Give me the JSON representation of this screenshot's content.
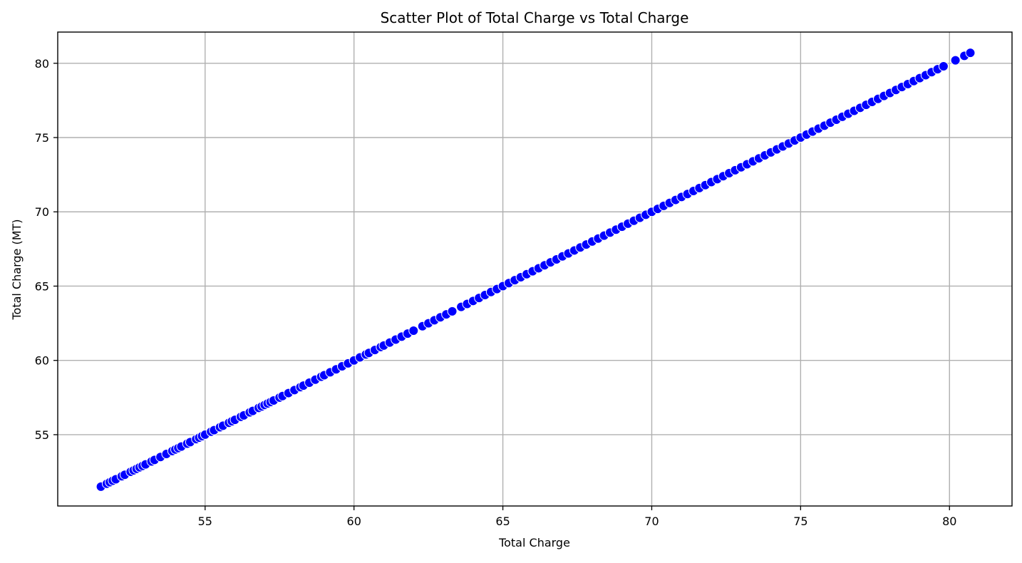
{
  "chart_data": {
    "type": "scatter",
    "title": "Scatter Plot of Total Charge vs Total Charge",
    "xlabel": "Total Charge",
    "ylabel": "Total Charge (MT)",
    "xlim": [
      50.05,
      82.1
    ],
    "ylim": [
      50.2,
      82.1
    ],
    "xticks": [
      55,
      60,
      65,
      70,
      75,
      80
    ],
    "yticks": [
      55,
      60,
      65,
      70,
      75,
      80
    ],
    "xtick_labels": [
      "55",
      "60",
      "65",
      "70",
      "75",
      "80"
    ],
    "ytick_labels": [
      "55",
      "60",
      "65",
      "70",
      "75",
      "80"
    ],
    "grid": true,
    "legend": "none",
    "marker_color": "#0000ff",
    "marker_edge_color": "#ffffff",
    "series": [
      {
        "x": [
          51.5,
          51.7,
          51.8,
          51.9,
          52.0,
          52.2,
          52.3,
          52.5,
          52.6,
          52.7,
          52.8,
          52.9,
          53.0,
          53.2,
          53.3,
          53.5,
          53.7,
          53.9,
          54.0,
          54.1,
          54.2,
          54.4,
          54.5,
          54.7,
          54.8,
          54.9,
          55.0,
          55.2,
          55.3,
          55.5,
          55.6,
          55.8,
          55.9,
          56.0,
          56.2,
          56.3,
          56.5,
          56.6,
          56.8,
          56.9,
          57.0,
          57.1,
          57.2,
          57.3,
          57.5,
          57.6,
          57.8,
          58.0,
          58.2,
          58.3,
          58.5,
          58.7,
          58.9,
          59.0,
          59.2,
          59.4,
          59.6,
          59.8,
          60.0,
          60.2,
          60.4,
          60.5,
          60.7,
          60.9,
          61.0,
          61.2,
          61.4,
          61.6,
          61.8,
          62.0,
          62.3,
          62.5,
          62.7,
          62.9,
          63.1,
          63.3,
          63.6,
          63.8,
          64.0,
          64.2,
          64.4,
          64.6,
          64.8,
          65.0,
          65.2,
          65.4,
          65.6,
          65.8,
          66.0,
          66.2,
          66.4,
          66.6,
          66.8,
          67.0,
          67.2,
          67.4,
          67.6,
          67.8,
          68.0,
          68.2,
          68.4,
          68.6,
          68.8,
          69.0,
          69.2,
          69.4,
          69.6,
          69.8,
          70.0,
          70.2,
          70.4,
          70.6,
          70.8,
          71.0,
          71.2,
          71.4,
          71.6,
          71.8,
          72.0,
          72.2,
          72.4,
          72.6,
          72.8,
          73.0,
          73.2,
          73.4,
          73.6,
          73.8,
          74.0,
          74.2,
          74.4,
          74.6,
          74.8,
          75.0,
          75.2,
          75.4,
          75.6,
          75.8,
          76.0,
          76.2,
          76.4,
          76.6,
          76.8,
          77.0,
          77.2,
          77.4,
          77.6,
          77.8,
          78.0,
          78.2,
          78.4,
          78.6,
          78.8,
          79.0,
          79.2,
          79.4,
          79.6,
          79.8,
          80.2,
          80.5,
          80.7
        ],
        "y": [
          51.5,
          51.7,
          51.8,
          51.9,
          52.0,
          52.2,
          52.3,
          52.5,
          52.6,
          52.7,
          52.8,
          52.9,
          53.0,
          53.2,
          53.3,
          53.5,
          53.7,
          53.9,
          54.0,
          54.1,
          54.2,
          54.4,
          54.5,
          54.7,
          54.8,
          54.9,
          55.0,
          55.2,
          55.3,
          55.5,
          55.6,
          55.8,
          55.9,
          56.0,
          56.2,
          56.3,
          56.5,
          56.6,
          56.8,
          56.9,
          57.0,
          57.1,
          57.2,
          57.3,
          57.5,
          57.6,
          57.8,
          58.0,
          58.2,
          58.3,
          58.5,
          58.7,
          58.9,
          59.0,
          59.2,
          59.4,
          59.6,
          59.8,
          60.0,
          60.2,
          60.4,
          60.5,
          60.7,
          60.9,
          61.0,
          61.2,
          61.4,
          61.6,
          61.8,
          62.0,
          62.3,
          62.5,
          62.7,
          62.9,
          63.1,
          63.3,
          63.6,
          63.8,
          64.0,
          64.2,
          64.4,
          64.6,
          64.8,
          65.0,
          65.2,
          65.4,
          65.6,
          65.8,
          66.0,
          66.2,
          66.4,
          66.6,
          66.8,
          67.0,
          67.2,
          67.4,
          67.6,
          67.8,
          68.0,
          68.2,
          68.4,
          68.6,
          68.8,
          69.0,
          69.2,
          69.4,
          69.6,
          69.8,
          70.0,
          70.2,
          70.4,
          70.6,
          70.8,
          71.0,
          71.2,
          71.4,
          71.6,
          71.8,
          72.0,
          72.2,
          72.4,
          72.6,
          72.8,
          73.0,
          73.2,
          73.4,
          73.6,
          73.8,
          74.0,
          74.2,
          74.4,
          74.6,
          74.8,
          75.0,
          75.2,
          75.4,
          75.6,
          75.8,
          76.0,
          76.2,
          76.4,
          76.6,
          76.8,
          77.0,
          77.2,
          77.4,
          77.6,
          77.8,
          78.0,
          78.2,
          78.4,
          78.6,
          78.8,
          79.0,
          79.2,
          79.4,
          79.6,
          79.8,
          80.2,
          80.5,
          80.7
        ]
      }
    ]
  }
}
